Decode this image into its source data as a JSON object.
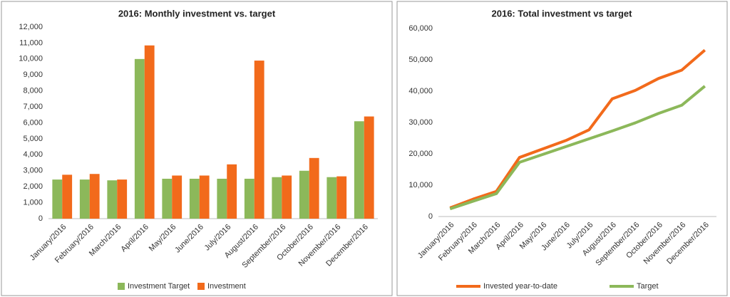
{
  "chart_data": [
    {
      "type": "bar",
      "title": "2016: Monthly investment vs. target",
      "categories": [
        "January/2016",
        "February/2016",
        "March/2016",
        "April/2016",
        "May/2016",
        "June/2016",
        "July/2016",
        "August/2016",
        "September/2016",
        "October/2016",
        "November/2016",
        "December/2016"
      ],
      "series": [
        {
          "name": "Investment Target",
          "color": "#8cb85a",
          "values": [
            2450,
            2450,
            2400,
            10000,
            2500,
            2500,
            2500,
            2500,
            2600,
            3000,
            2600,
            6100
          ]
        },
        {
          "name": "Investment",
          "color": "#f26a1b",
          "values": [
            2750,
            2800,
            2450,
            10850,
            2700,
            2700,
            3400,
            9900,
            2700,
            3800,
            2650,
            6400
          ]
        }
      ],
      "ylim": [
        0,
        12000
      ],
      "yticks": [
        0,
        {
          "value": 1000,
          "label": "1,000"
        },
        {
          "value": 2000,
          "label": "2,000"
        },
        {
          "value": 3000,
          "label": "3,000"
        },
        {
          "value": 4000,
          "label": "4,000"
        },
        {
          "value": 5000,
          "label": "5,000"
        },
        {
          "value": 6000,
          "label": "6,000"
        },
        {
          "value": 7000,
          "label": "7,000"
        },
        {
          "value": 8000,
          "label": "8,000"
        },
        {
          "value": 9000,
          "label": "9,000"
        },
        {
          "value": 10000,
          "label": "10,000"
        },
        {
          "value": 11000,
          "label": "11,000"
        },
        {
          "value": 12000,
          "label": "12,000"
        }
      ],
      "grid": false,
      "legend": "bottom"
    },
    {
      "type": "line",
      "title": "2016: Total investment vs target",
      "categories": [
        "January/2016",
        "February/2016",
        "March/2016",
        "April/2016",
        "May/2016",
        "June/2016",
        "July/2016",
        "August/2016",
        "September/2016",
        "October/2016",
        "November/2016",
        "December/2016"
      ],
      "series": [
        {
          "name": "Invested year-to-date",
          "color": "#f26a1b",
          "values": [
            2750,
            5550,
            8000,
            18850,
            21550,
            24250,
            27650,
            37550,
            40250,
            44050,
            46700,
            53100
          ]
        },
        {
          "name": "Target",
          "color": "#8cb85a",
          "values": [
            2450,
            4900,
            7300,
            17300,
            19800,
            22300,
            24800,
            27300,
            29900,
            32900,
            35500,
            41600
          ]
        }
      ],
      "ylim": [
        0,
        60000
      ],
      "yticks": [
        0,
        {
          "value": 10000,
          "label": "10,000"
        },
        {
          "value": 20000,
          "label": "20,000"
        },
        {
          "value": 30000,
          "label": "30,000"
        },
        {
          "value": 40000,
          "label": "40,000"
        },
        {
          "value": 50000,
          "label": "50,000"
        },
        {
          "value": 60000,
          "label": "60,000"
        }
      ],
      "grid": false,
      "legend": "bottom"
    }
  ]
}
